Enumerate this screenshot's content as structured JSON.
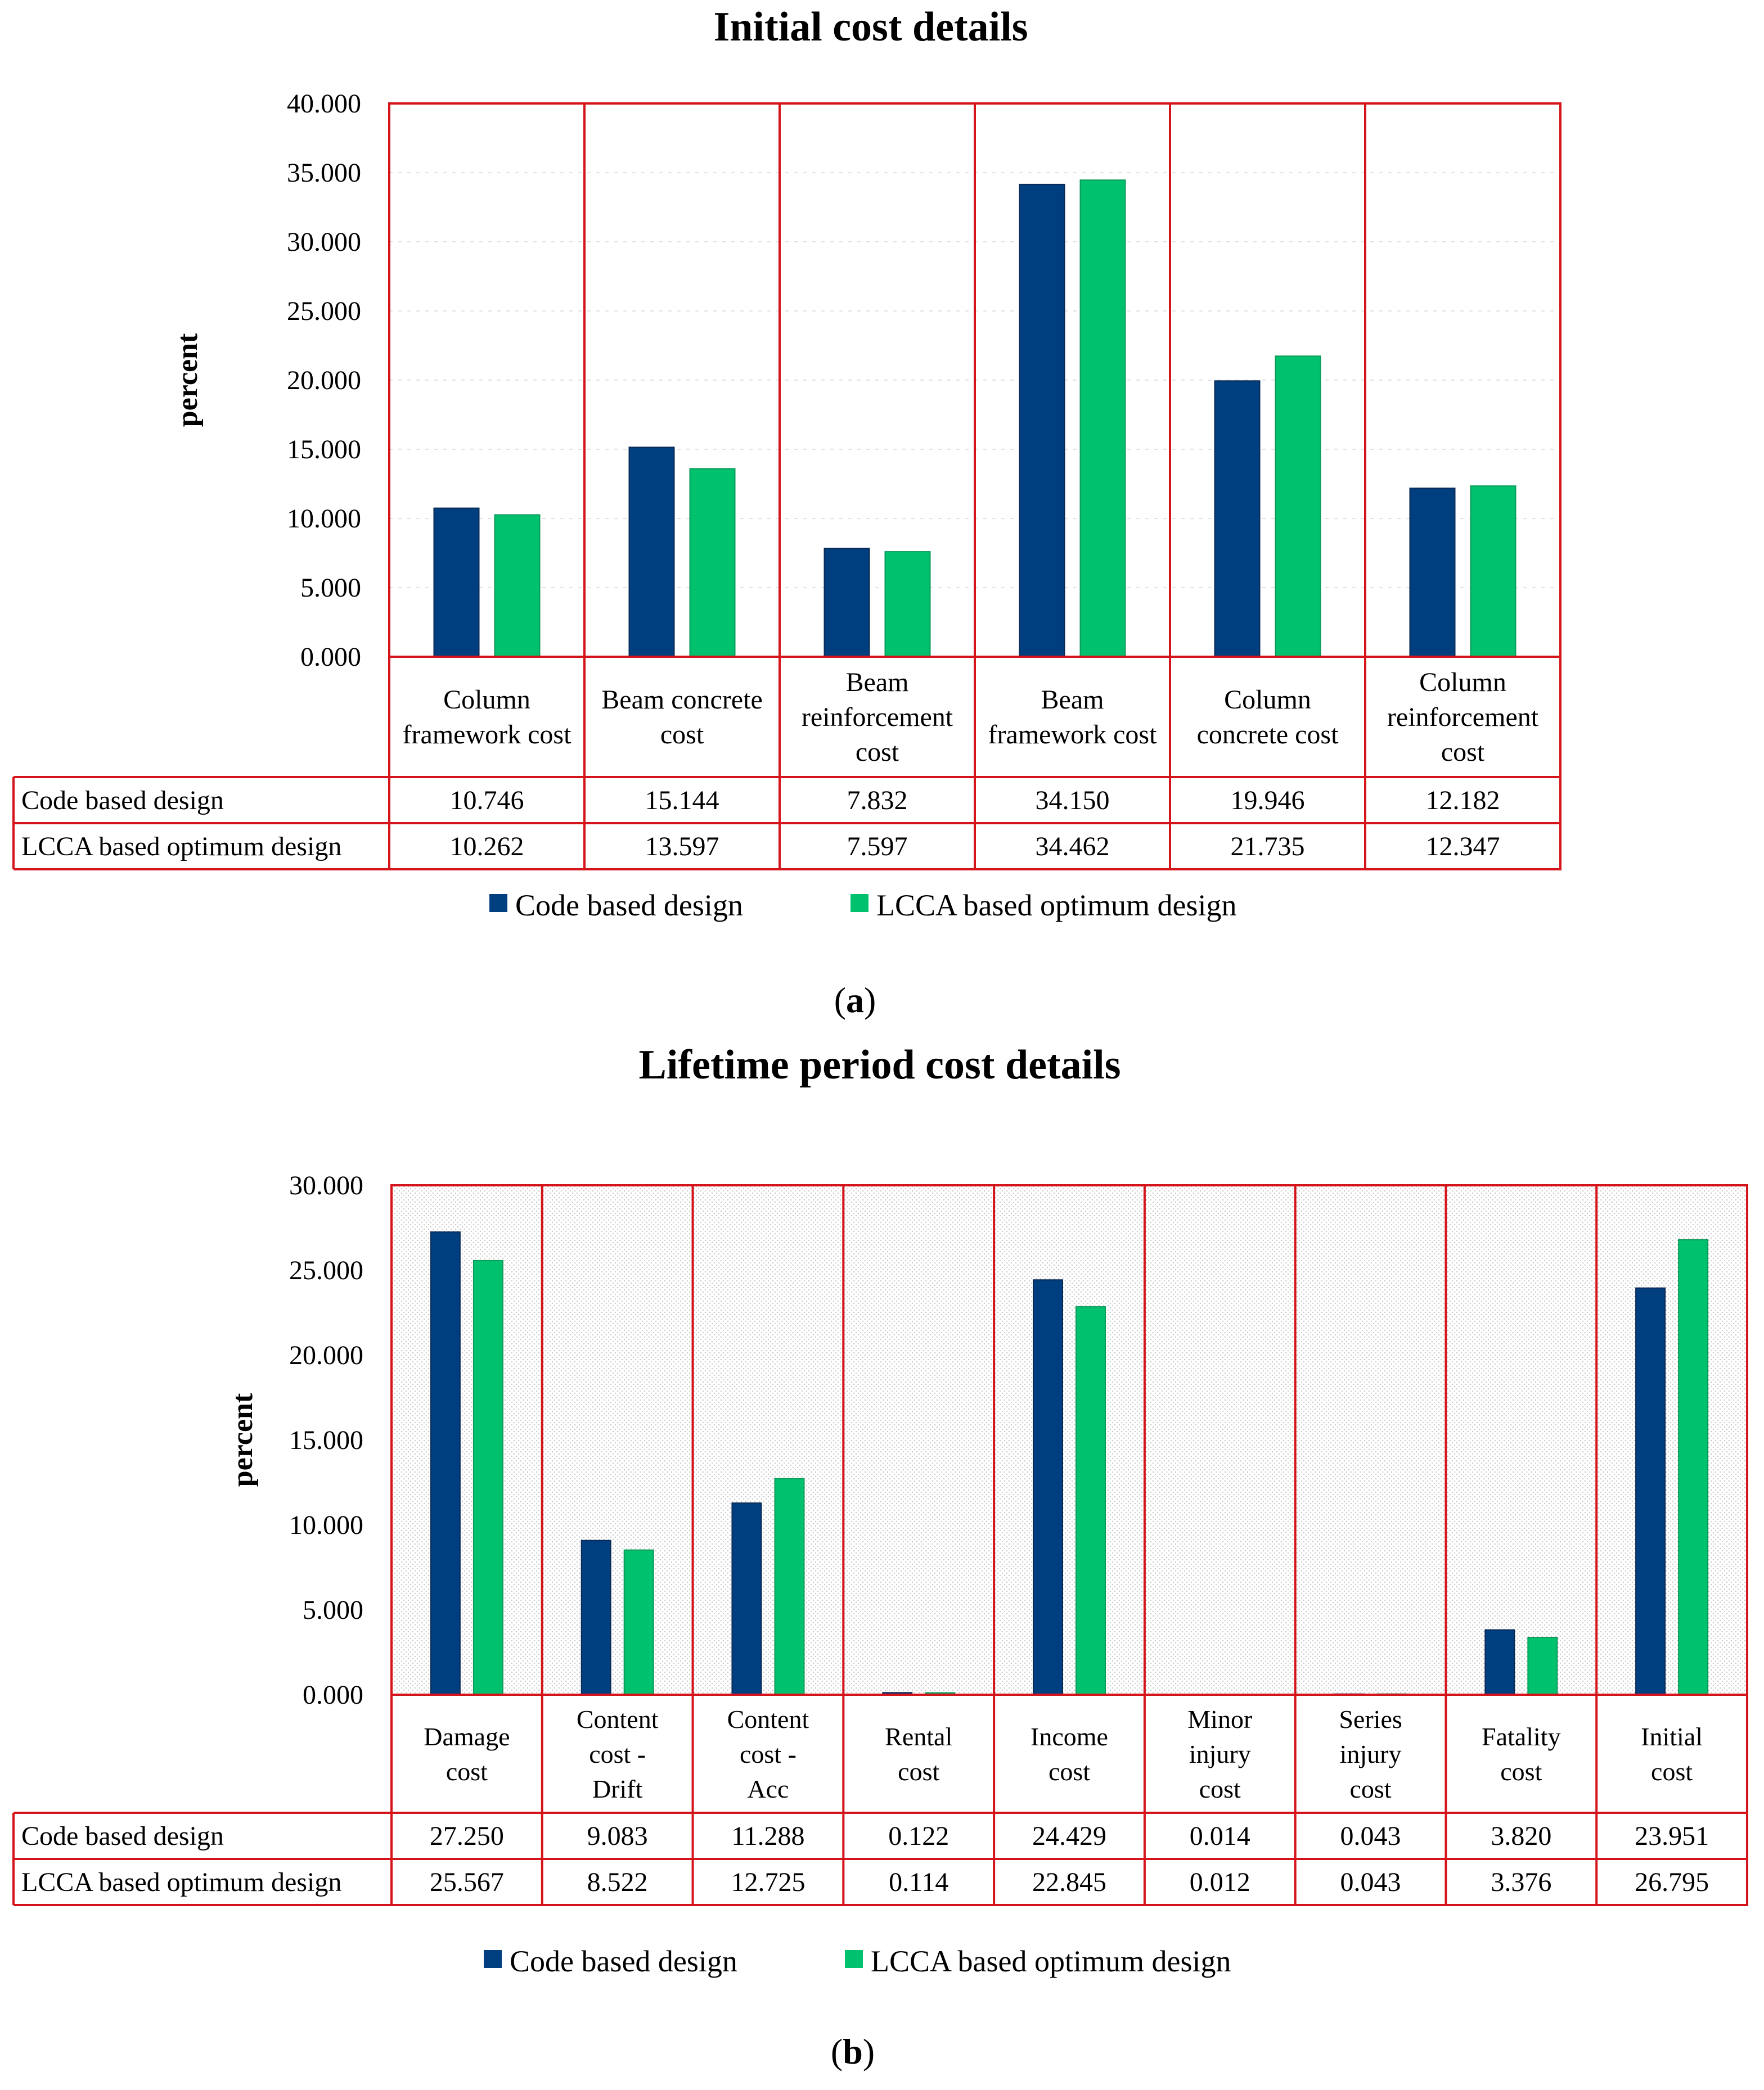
{
  "chart_data": [
    {
      "type": "bar",
      "title": "Initial cost details",
      "panel_label": "a",
      "ylabel": "percent",
      "ylim": [
        0,
        40
      ],
      "yticks": [
        "0.000",
        "5.000",
        "10.000",
        "15.000",
        "20.000",
        "25.000",
        "30.000",
        "35.000",
        "40.000"
      ],
      "categories": [
        [
          "Column",
          "framework cost"
        ],
        [
          "Beam concrete",
          "cost"
        ],
        [
          "Beam",
          "reinforcement",
          "cost"
        ],
        [
          "Beam",
          "framework cost"
        ],
        [
          "Column",
          "concrete cost"
        ],
        [
          "Column",
          "reinforcement",
          "cost"
        ]
      ],
      "series": [
        {
          "name": "Code based design",
          "color": "#003f7f",
          "values": [
            10.746,
            15.144,
            7.832,
            34.15,
            19.946,
            12.182
          ],
          "labels": [
            "10.746",
            "15.144",
            "7.832",
            "34.150",
            "19.946",
            "12.182"
          ]
        },
        {
          "name": "LCCA based optimum design",
          "color": "#00c26e",
          "values": [
            10.262,
            13.597,
            7.597,
            34.462,
            21.735,
            12.347
          ],
          "labels": [
            "10.262",
            "13.597",
            "7.597",
            "34.462",
            "21.735",
            "12.347"
          ]
        }
      ]
    },
    {
      "type": "bar",
      "title": "Lifetime period cost details",
      "panel_label": "b",
      "ylabel": "percent",
      "ylim": [
        0,
        30
      ],
      "yticks": [
        "0.000",
        "5.000",
        "10.000",
        "15.000",
        "20.000",
        "25.000",
        "30.000"
      ],
      "categories": [
        [
          "Damage",
          "cost"
        ],
        [
          "Content",
          "cost -",
          "Drift"
        ],
        [
          "Content",
          "cost -",
          "Acc"
        ],
        [
          "Rental",
          "cost"
        ],
        [
          "Income",
          "cost"
        ],
        [
          "Minor",
          "injury",
          "cost"
        ],
        [
          "Series",
          "injury",
          "cost"
        ],
        [
          "Fatality",
          "cost"
        ],
        [
          "Initial",
          "cost"
        ]
      ],
      "series": [
        {
          "name": "Code based design",
          "color": "#003f7f",
          "values": [
            27.25,
            9.083,
            11.288,
            0.122,
            24.429,
            0.014,
            0.043,
            3.82,
            23.951
          ],
          "labels": [
            "27.250",
            "9.083",
            "11.288",
            "0.122",
            "24.429",
            "0.014",
            "0.043",
            "3.820",
            "23.951"
          ]
        },
        {
          "name": "LCCA based optimum design",
          "color": "#00c26e",
          "values": [
            25.567,
            8.522,
            12.725,
            0.114,
            22.845,
            0.012,
            0.043,
            3.376,
            26.795
          ],
          "labels": [
            "25.567",
            "8.522",
            "12.725",
            "0.114",
            "22.845",
            "0.012",
            "0.043",
            "3.376",
            "26.795"
          ]
        }
      ]
    }
  ]
}
